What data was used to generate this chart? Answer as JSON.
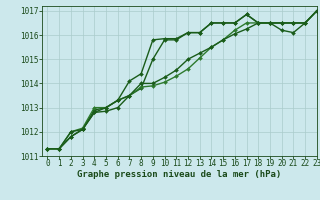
{
  "title": "Graphe pression niveau de la mer (hPa)",
  "background_color": "#cce8ec",
  "grid_color": "#aacccc",
  "text_color": "#1a4a1a",
  "line_color_dark": "#1a5c1a",
  "line_color_mid": "#2d7a2d",
  "xlim": [
    -0.5,
    23
  ],
  "ylim": [
    1011,
    1017.2
  ],
  "xticks": [
    0,
    1,
    2,
    3,
    4,
    5,
    6,
    7,
    8,
    9,
    10,
    11,
    12,
    13,
    14,
    15,
    16,
    17,
    18,
    19,
    20,
    21,
    22,
    23
  ],
  "yticks": [
    1011,
    1012,
    1013,
    1014,
    1015,
    1016,
    1017
  ],
  "series": [
    [
      1011.3,
      1011.3,
      1011.8,
      1012.1,
      1012.9,
      1013.0,
      1013.3,
      1014.1,
      1014.4,
      1015.8,
      1015.85,
      1015.85,
      1016.1,
      1016.1,
      1016.5,
      1016.5,
      1016.5,
      1016.85,
      1016.5,
      1016.5,
      1016.5,
      1016.5,
      1016.5,
      1017.0
    ],
    [
      1011.3,
      1011.3,
      1011.8,
      1012.1,
      1012.8,
      1012.85,
      1013.0,
      1013.5,
      1013.8,
      1015.0,
      1015.8,
      1015.8,
      1016.1,
      1016.1,
      1016.5,
      1016.5,
      1016.5,
      1016.85,
      1016.5,
      1016.5,
      1016.2,
      1016.1,
      1016.5,
      1017.0
    ],
    [
      1011.3,
      1011.3,
      1012.0,
      1012.15,
      1013.0,
      1013.0,
      1013.3,
      1013.5,
      1013.85,
      1013.9,
      1014.05,
      1014.3,
      1014.6,
      1015.05,
      1015.5,
      1015.8,
      1016.2,
      1016.5,
      1016.5,
      1016.5,
      1016.5,
      1016.5,
      1016.5,
      1017.0
    ],
    [
      1011.3,
      1011.3,
      1012.0,
      1012.1,
      1012.8,
      1013.0,
      1013.3,
      1013.5,
      1014.0,
      1014.0,
      1014.25,
      1014.55,
      1015.0,
      1015.25,
      1015.5,
      1015.8,
      1016.05,
      1016.25,
      1016.5,
      1016.5,
      1016.5,
      1016.5,
      1016.5,
      1017.0
    ]
  ],
  "series_colors": [
    "#1a5c1a",
    "#1a5c1a",
    "#2d7a2d",
    "#1a5c1a"
  ],
  "series_lw": [
    1.0,
    1.0,
    1.0,
    1.0
  ],
  "marker_size": 2.0,
  "tick_fontsize": 5.5,
  "xlabel_fontsize": 6.5
}
